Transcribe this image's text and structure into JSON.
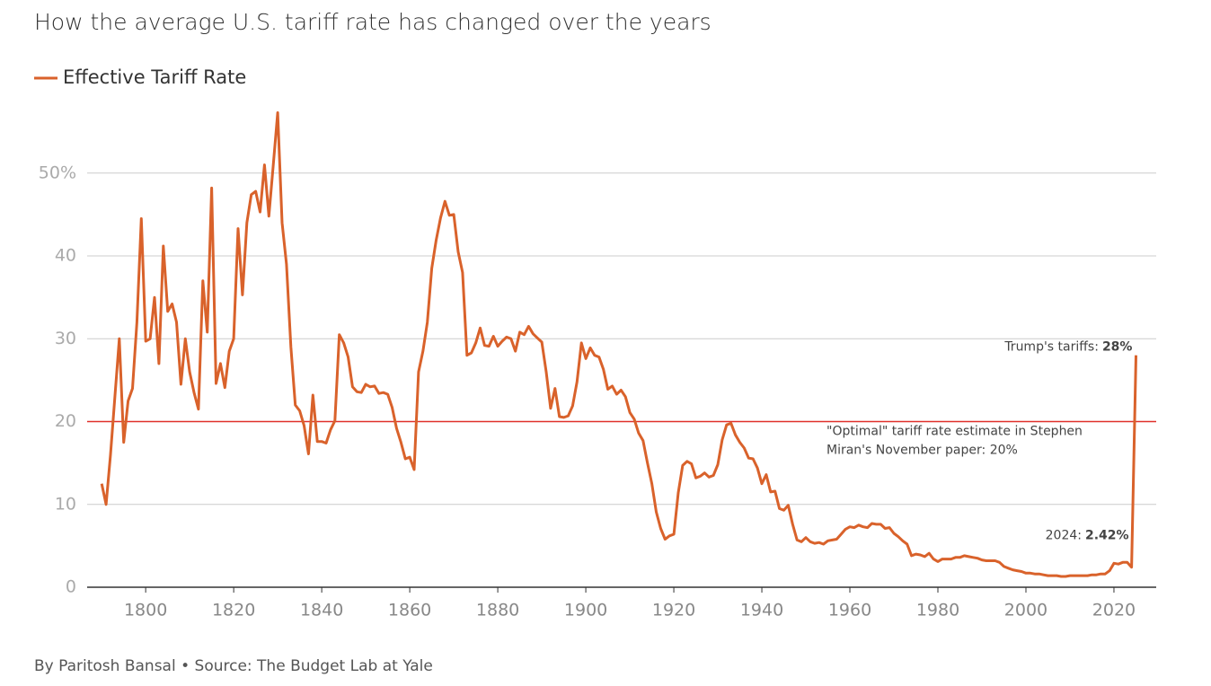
{
  "chart_data": {
    "type": "line",
    "title": "How the average U.S. tariff rate has changed over the years",
    "footer": "By Paritosh Bansal • Source: The Budget Lab at Yale",
    "xlim": [
      1786.7,
      2029.6
    ],
    "ylim": [
      0,
      58
    ],
    "xticks": [
      1800,
      1820,
      1840,
      1860,
      1880,
      1900,
      1920,
      1940,
      1960,
      1980,
      2000,
      2020
    ],
    "yticks": [
      0,
      10,
      20,
      30,
      40,
      {
        "value": 50,
        "label": "50%"
      }
    ],
    "grid": true,
    "x": [
      1790,
      1791,
      1792,
      1793,
      1794,
      1795,
      1796,
      1797,
      1798,
      1799,
      1800,
      1801,
      1802,
      1803,
      1804,
      1805,
      1806,
      1807,
      1808,
      1809,
      1810,
      1811,
      1812,
      1813,
      1814,
      1815,
      1816,
      1817,
      1818,
      1819,
      1820,
      1821,
      1822,
      1823,
      1824,
      1825,
      1826,
      1827,
      1828,
      1829,
      1830,
      1831,
      1832,
      1833,
      1834,
      1835,
      1836,
      1837,
      1838,
      1839,
      1840,
      1841,
      1842,
      1843,
      1844,
      1845,
      1846,
      1847,
      1848,
      1849,
      1850,
      1851,
      1852,
      1853,
      1854,
      1855,
      1856,
      1857,
      1858,
      1859,
      1860,
      1861,
      1862,
      1863,
      1864,
      1865,
      1866,
      1867,
      1868,
      1869,
      1870,
      1871,
      1872,
      1873,
      1874,
      1875,
      1876,
      1877,
      1878,
      1879,
      1880,
      1881,
      1882,
      1883,
      1884,
      1885,
      1886,
      1887,
      1888,
      1889,
      1890,
      1891,
      1892,
      1893,
      1894,
      1895,
      1896,
      1897,
      1898,
      1899,
      1900,
      1901,
      1902,
      1903,
      1904,
      1905,
      1906,
      1907,
      1908,
      1909,
      1910,
      1911,
      1912,
      1913,
      1914,
      1915,
      1916,
      1917,
      1918,
      1919,
      1920,
      1921,
      1922,
      1923,
      1924,
      1925,
      1926,
      1927,
      1928,
      1929,
      1930,
      1931,
      1932,
      1933,
      1934,
      1935,
      1936,
      1937,
      1938,
      1939,
      1940,
      1941,
      1942,
      1943,
      1944,
      1945,
      1946,
      1947,
      1948,
      1949,
      1950,
      1951,
      1952,
      1953,
      1954,
      1955,
      1956,
      1957,
      1958,
      1959,
      1960,
      1961,
      1962,
      1963,
      1964,
      1965,
      1966,
      1967,
      1968,
      1969,
      1970,
      1971,
      1972,
      1973,
      1974,
      1975,
      1976,
      1977,
      1978,
      1979,
      1980,
      1981,
      1982,
      1983,
      1984,
      1985,
      1986,
      1987,
      1988,
      1989,
      1990,
      1991,
      1992,
      1993,
      1994,
      1995,
      1996,
      1997,
      1998,
      1999,
      2000,
      2001,
      2002,
      2003,
      2004,
      2005,
      2006,
      2007,
      2008,
      2009,
      2010,
      2011,
      2012,
      2013,
      2014,
      2015,
      2016,
      2017,
      2018,
      2019,
      2020,
      2021,
      2022,
      2023,
      2024,
      2025
    ],
    "series": [
      {
        "name": "Effective Tariff Rate",
        "color": "#d9622b",
        "values": [
          12.5,
          10,
          16,
          23,
          30,
          17.5,
          22.5,
          24,
          32,
          44.5,
          29.7,
          30,
          35,
          27,
          41.2,
          33.3,
          34.2,
          32,
          24.5,
          30,
          26,
          23.5,
          21.5,
          37,
          30.8,
          48.2,
          24.6,
          27,
          24.1,
          28.5,
          30,
          43.3,
          35.3,
          44,
          47.4,
          47.8,
          45.3,
          51,
          44.8,
          51,
          57.3,
          44,
          39,
          29,
          22,
          21.3,
          19.5,
          16.1,
          23.2,
          17.6,
          17.6,
          17.4,
          19,
          20.1,
          30.5,
          29.5,
          27.8,
          24.2,
          23.6,
          23.5,
          24.5,
          24.2,
          24.3,
          23.4,
          23.5,
          23.3,
          21.7,
          19.2,
          17.5,
          15.5,
          15.7,
          14.2,
          26,
          28.5,
          32,
          38.5,
          41.9,
          44.6,
          46.6,
          44.9,
          45,
          40.5,
          38,
          28,
          28.3,
          29.5,
          31.3,
          29.2,
          29.1,
          30.3,
          29.1,
          29.7,
          30.2,
          30,
          28.5,
          30.8,
          30.5,
          31.5,
          30.6,
          30.1,
          29.6,
          26,
          21.6,
          24,
          20.6,
          20.5,
          20.7,
          21.9,
          24.8,
          29.5,
          27.6,
          28.9,
          28,
          27.8,
          26.3,
          23.9,
          24.3,
          23.3,
          23.8,
          23,
          21.1,
          20.3,
          18.6,
          17.7,
          15,
          12.5,
          9.1,
          7.1,
          5.8,
          6.2,
          6.4,
          11.4,
          14.7,
          15.2,
          14.9,
          13.2,
          13.4,
          13.8,
          13.3,
          13.5,
          14.8,
          17.8,
          19.6,
          19.8,
          18.4,
          17.5,
          16.8,
          15.6,
          15.5,
          14.4,
          12.5,
          13.6,
          11.5,
          11.6,
          9.5,
          9.3,
          9.9,
          7.6,
          5.7,
          5.5,
          6,
          5.5,
          5.3,
          5.4,
          5.2,
          5.6,
          5.7,
          5.8,
          6.4,
          7,
          7.3,
          7.2,
          7.5,
          7.3,
          7.2,
          7.7,
          7.6,
          7.6,
          7.1,
          7.2,
          6.5,
          6.1,
          5.6,
          5.2,
          3.8,
          4,
          3.9,
          3.7,
          4.1,
          3.4,
          3.1,
          3.4,
          3.4,
          3.4,
          3.6,
          3.6,
          3.8,
          3.7,
          3.6,
          3.5,
          3.3,
          3.2,
          3.2,
          3.2,
          3,
          2.5,
          2.3,
          2.1,
          2,
          1.9,
          1.7,
          1.7,
          1.6,
          1.6,
          1.5,
          1.4,
          1.4,
          1.4,
          1.3,
          1.3,
          1.4,
          1.4,
          1.4,
          1.4,
          1.4,
          1.5,
          1.5,
          1.6,
          1.6,
          2,
          2.9,
          2.8,
          3,
          3,
          2.42,
          28
        ]
      }
    ],
    "reference_line": {
      "value": 20,
      "color": "#e0302a",
      "label": [
        "\"Optimal\" tariff rate estimate in Stephen",
        "Miran's November paper: 20%"
      ]
    },
    "annotations": [
      {
        "text": "Trump's tariffs:",
        "bold": "28%",
        "x": 2025,
        "y": 28
      },
      {
        "text": "2024:",
        "bold": "2.42%",
        "x": 2024,
        "y": 2.42
      }
    ]
  }
}
